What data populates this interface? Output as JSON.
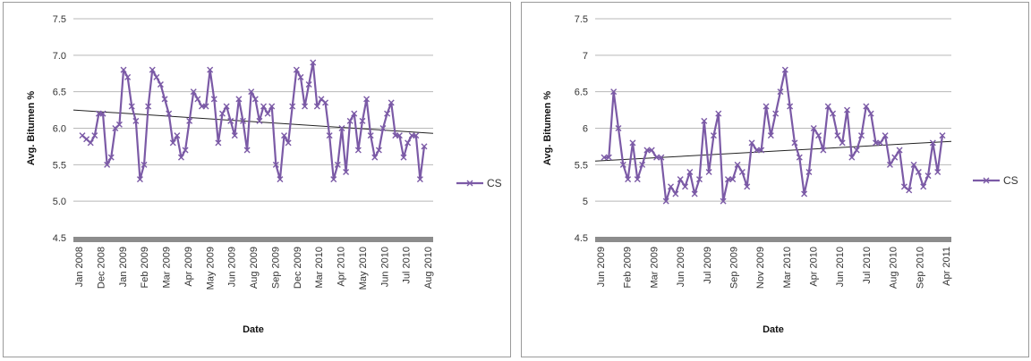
{
  "chart_data": [
    {
      "type": "line",
      "xlabel": "Date",
      "ylabel": "Avg. Bitumen %",
      "ylim": [
        4.5,
        7.5
      ],
      "yticks": [
        "4.5",
        "5.0",
        "5.5",
        "6.0",
        "6.5",
        "7.0",
        "7.5"
      ],
      "x_tick_labels": [
        "Jan 2008",
        "Dec 2008",
        "Jan 2009",
        "Feb 2009",
        "Mar 2009",
        "Apr 2009",
        "May 2009",
        "Jun 2009",
        "Aug 2009",
        "Sep 2009",
        "Dec 2009",
        "Mar 2010",
        "Apr 2010",
        "May 2010",
        "Jun 2010",
        "Jul 2010",
        "Aug 2010"
      ],
      "grid": true,
      "legend": "right",
      "series": [
        {
          "name": "CS",
          "color": "#7b5aa6",
          "y": [
            5.9,
            5.85,
            5.8,
            5.9,
            6.2,
            6.2,
            5.5,
            5.6,
            6.0,
            6.05,
            6.8,
            6.7,
            6.3,
            6.1,
            5.3,
            5.5,
            6.3,
            6.8,
            6.7,
            6.6,
            6.4,
            6.2,
            5.8,
            5.9,
            5.6,
            5.7,
            6.1,
            6.5,
            6.4,
            6.3,
            6.3,
            6.8,
            6.4,
            5.8,
            6.2,
            6.3,
            6.1,
            5.9,
            6.4,
            6.1,
            5.7,
            6.5,
            6.4,
            6.1,
            6.3,
            6.2,
            6.3,
            5.5,
            5.3,
            5.9,
            5.8,
            6.3,
            6.8,
            6.7,
            6.3,
            6.6,
            6.9,
            6.3,
            6.4,
            6.35,
            5.9,
            5.3,
            5.5,
            6.0,
            5.4,
            6.1,
            6.2,
            5.7,
            6.1,
            6.4,
            5.9,
            5.6,
            5.7,
            6.0,
            6.2,
            6.35,
            5.9,
            5.9,
            5.6,
            5.8,
            5.9,
            5.9,
            5.3,
            5.75
          ]
        },
        {
          "name": "trend",
          "color": "#222222",
          "y": [
            6.25,
            5.93
          ]
        }
      ]
    },
    {
      "type": "line",
      "xlabel": "Date",
      "ylabel": "Avg. Bitumen %",
      "ylim": [
        4.5,
        7.5
      ],
      "yticks": [
        "4.5",
        "5",
        "5.5",
        "6",
        "6.5",
        "7",
        "7.5"
      ],
      "x_tick_labels": [
        "Jun 2009",
        "Feb 2009",
        "Mar 2009",
        "Jun 2009",
        "Jul 2009",
        "Sep 2009",
        "Nov 2009",
        "Mar 2010",
        "Apr 2010",
        "Jun 2010",
        "Jul 2010",
        "Aug 2010",
        "Sep 2010",
        "Apr 2011"
      ],
      "grid": true,
      "legend": "right",
      "series": [
        {
          "name": "CS",
          "color": "#7b5aa6",
          "y": [
            5.6,
            5.6,
            6.5,
            6.0,
            5.5,
            5.3,
            5.8,
            5.3,
            5.5,
            5.7,
            5.7,
            5.6,
            5.6,
            5.0,
            5.2,
            5.1,
            5.3,
            5.2,
            5.4,
            5.1,
            5.3,
            6.1,
            5.4,
            5.9,
            6.2,
            5.0,
            5.3,
            5.3,
            5.5,
            5.4,
            5.2,
            5.8,
            5.7,
            5.7,
            6.3,
            5.9,
            6.2,
            6.5,
            6.8,
            6.3,
            5.8,
            5.6,
            5.1,
            5.4,
            6.0,
            5.9,
            5.7,
            6.3,
            6.2,
            5.9,
            5.8,
            6.25,
            5.6,
            5.7,
            5.9,
            6.3,
            6.2,
            5.8,
            5.8,
            5.9,
            5.5,
            5.6,
            5.7,
            5.2,
            5.15,
            5.5,
            5.4,
            5.2,
            5.35,
            5.8,
            5.4,
            5.9
          ]
        },
        {
          "name": "trend",
          "color": "#222222",
          "y": [
            5.55,
            5.82
          ]
        }
      ]
    }
  ]
}
